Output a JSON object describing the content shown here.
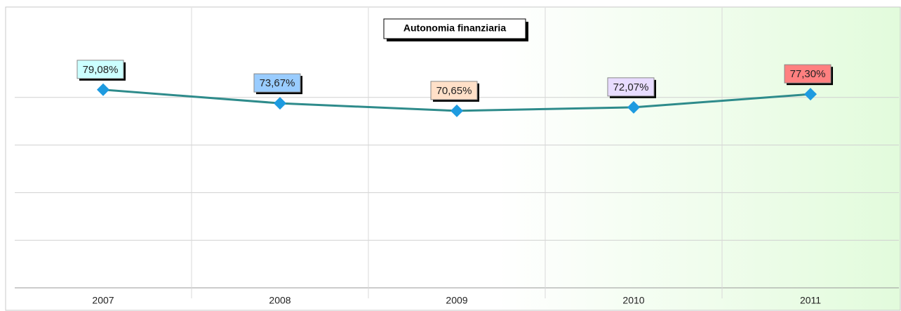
{
  "chart_data": {
    "type": "line",
    "title": "Autonomia finanziaria",
    "categories": [
      "2007",
      "2008",
      "2009",
      "2010",
      "2011"
    ],
    "series": [
      {
        "name": "Autonomia finanziaria",
        "color": "#2e8b8b",
        "marker_color": "#1e9be0",
        "values": [
          79.08,
          73.67,
          70.65,
          72.07,
          77.3
        ],
        "value_labels": [
          "79,08%",
          "73,67%",
          "70,65%",
          "72,07%",
          "77,30%"
        ],
        "label_colors": [
          "#ccffff",
          "#99ccff",
          "#ffe0c8",
          "#e8dcff",
          "#ff8080"
        ]
      }
    ],
    "ylim": [
      0,
      95
    ],
    "yticks": [
      0,
      19,
      38,
      57,
      76
    ],
    "grid": true
  }
}
